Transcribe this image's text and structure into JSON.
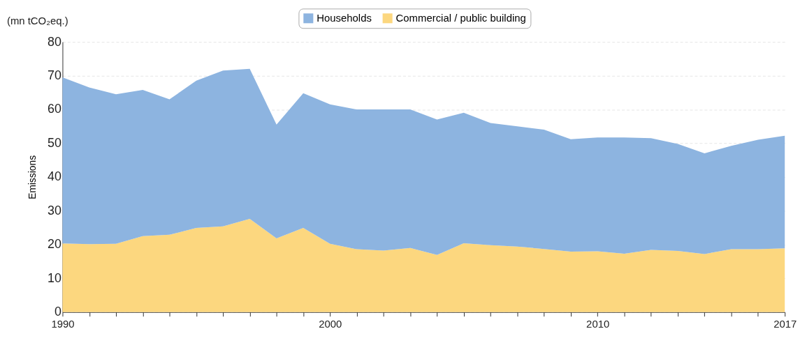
{
  "chart_data": {
    "type": "area",
    "stacked": true,
    "ylabel": "Emissions",
    "annotations": [
      "(mn tCO₂eq.)"
    ],
    "x": [
      1990,
      1991,
      1992,
      1993,
      1994,
      1995,
      1996,
      1997,
      1998,
      1999,
      2000,
      2001,
      2002,
      2003,
      2004,
      2005,
      2006,
      2007,
      2008,
      2009,
      2010,
      2011,
      2012,
      2013,
      2014,
      2015,
      2016,
      2017
    ],
    "series": [
      {
        "name": "Commercial / public building",
        "color": "#fcd77f",
        "values": [
          20.3,
          20.1,
          20.2,
          22.5,
          22.9,
          24.9,
          25.4,
          27.6,
          21.8,
          24.9,
          20.2,
          18.6,
          18.2,
          19.0,
          16.9,
          20.4,
          19.8,
          19.4,
          18.7,
          17.9,
          18.0,
          17.3,
          18.4,
          18.1,
          17.2,
          18.6,
          18.6,
          18.9
        ]
      },
      {
        "name": "Households",
        "color": "#8db4e0",
        "values": [
          49.2,
          46.4,
          44.3,
          43.3,
          40.1,
          43.6,
          46.1,
          44.4,
          33.7,
          39.9,
          41.3,
          41.4,
          41.8,
          41.0,
          40.1,
          38.6,
          36.2,
          35.6,
          35.3,
          33.3,
          33.7,
          34.4,
          33.1,
          31.7,
          29.8,
          30.6,
          32.4,
          33.3
        ]
      }
    ],
    "xlim": [
      1990,
      2017
    ],
    "xticks": [
      1990,
      {
        "value": 1991,
        "label": null
      },
      {
        "value": 1992,
        "label": null
      },
      {
        "value": 1993,
        "label": null
      },
      {
        "value": 1994,
        "label": null
      },
      {
        "value": 1995,
        "label": null
      },
      {
        "value": 1996,
        "label": null
      },
      {
        "value": 1997,
        "label": null
      },
      {
        "value": 1998,
        "label": null
      },
      {
        "value": 1999,
        "label": null
      },
      2000,
      {
        "value": 2001,
        "label": null
      },
      {
        "value": 2002,
        "label": null
      },
      {
        "value": 2003,
        "label": null
      },
      {
        "value": 2004,
        "label": null
      },
      {
        "value": 2005,
        "label": null
      },
      {
        "value": 2006,
        "label": null
      },
      {
        "value": 2007,
        "label": null
      },
      {
        "value": 2008,
        "label": null
      },
      {
        "value": 2009,
        "label": null
      },
      2010,
      {
        "value": 2011,
        "label": null
      },
      {
        "value": 2012,
        "label": null
      },
      {
        "value": 2013,
        "label": null
      },
      {
        "value": 2014,
        "label": null
      },
      {
        "value": 2015,
        "label": null
      },
      {
        "value": 2016,
        "label": null
      },
      2017
    ],
    "ylim": [
      0,
      80
    ],
    "yticks": [
      0,
      10,
      20,
      30,
      40,
      50,
      60,
      70,
      80
    ],
    "grid": "y",
    "legend": "top"
  }
}
